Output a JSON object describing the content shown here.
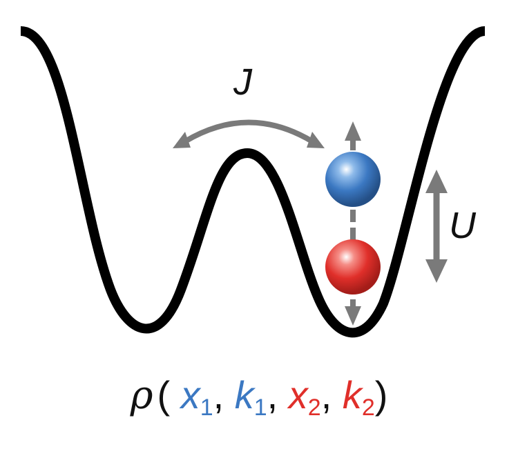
{
  "labels": {
    "tunneling": "J",
    "interaction": "U"
  },
  "formula": {
    "rho": "ρ",
    "open": "(",
    "x1": "x",
    "x1_sub": "1",
    "comma1": ", ",
    "k1": "k",
    "k1_sub": "1",
    "comma2": ", ",
    "x2": "x",
    "x2_sub": "2",
    "comma3": ", ",
    "k2": "k",
    "k2_sub": "2",
    "close": ")"
  },
  "colors": {
    "potential": "#000000",
    "arrow": "#7a7a7a",
    "particle_1": "#3b78c2",
    "particle_2": "#e02f2a",
    "text": "#111111"
  }
}
